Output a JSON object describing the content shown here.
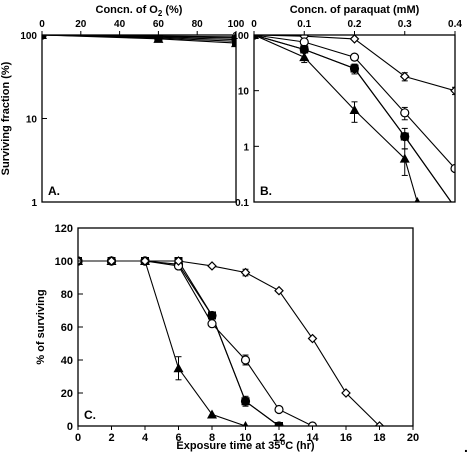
{
  "figure": {
    "trailing_mark": "."
  },
  "chart_data": [
    {
      "panel": "A.",
      "type": "line",
      "xlabel": "Concn. of O",
      "xlabel_sub": "2",
      "xlabel_suffix": " (%)",
      "xlabel_position": "top",
      "ylabel": "Surviving fraction (%)",
      "xlim": [
        0,
        100
      ],
      "ylim": [
        1,
        100
      ],
      "yscale": "log",
      "xticks": [
        0,
        20,
        40,
        60,
        80,
        100
      ],
      "xtick_labels": [
        "0",
        "20",
        "40",
        "60",
        "80",
        "100"
      ],
      "yticks": [
        1,
        10,
        100
      ],
      "ytick_labels": [
        "1",
        "10",
        "100"
      ],
      "grid": false,
      "series": [
        {
          "marker": "diamond-open",
          "x": [
            0,
            60,
            100
          ],
          "y": [
            100,
            97,
            95
          ],
          "err": [
            0,
            0,
            0
          ]
        },
        {
          "marker": "circle-open",
          "x": [
            0,
            60,
            100
          ],
          "y": [
            100,
            96,
            92
          ],
          "err": [
            0,
            0,
            0
          ]
        },
        {
          "marker": "circle-filled",
          "x": [
            0,
            60,
            100
          ],
          "y": [
            100,
            94,
            88
          ],
          "err": [
            0,
            0,
            0
          ]
        },
        {
          "marker": "square-filled",
          "x": [
            0,
            60,
            100
          ],
          "y": [
            100,
            92,
            84
          ],
          "err": [
            0,
            0,
            0
          ]
        },
        {
          "marker": "triangle-filled",
          "x": [
            0,
            60,
            100
          ],
          "y": [
            100,
            90,
            80
          ],
          "err": [
            0,
            0,
            0
          ]
        }
      ]
    },
    {
      "panel": "B.",
      "type": "line",
      "xlabel": "Concn. of paraquat (mM)",
      "xlabel_position": "top",
      "xlim": [
        0,
        0.4
      ],
      "ylim": [
        0.1,
        100
      ],
      "yscale": "log",
      "xticks": [
        0,
        0.1,
        0.2,
        0.3,
        0.4
      ],
      "xtick_labels": [
        "0",
        "0.1",
        "0.2",
        "0.3",
        "0.4"
      ],
      "yticks": [
        0.1,
        1,
        10,
        100
      ],
      "ytick_labels": [
        "0.1",
        "1",
        "10",
        "100"
      ],
      "grid": false,
      "series": [
        {
          "marker": "diamond-open",
          "x": [
            0,
            0.1,
            0.2,
            0.3,
            0.4
          ],
          "y": [
            100,
            95,
            85,
            18,
            10
          ],
          "err": [
            0,
            0,
            0,
            3,
            1.5
          ]
        },
        {
          "marker": "circle-open",
          "x": [
            0,
            0.1,
            0.2,
            0.3,
            0.4
          ],
          "y": [
            100,
            75,
            40,
            4,
            0.4
          ],
          "err": [
            0,
            0,
            5,
            1,
            0
          ]
        },
        {
          "marker": "circle-filled",
          "x": [
            0,
            0.1,
            0.2,
            0.3,
            0.4
          ],
          "y": [
            100,
            55,
            25,
            1.5,
            0.08
          ],
          "err": [
            0,
            5,
            5,
            0.6,
            0
          ]
        },
        {
          "marker": "square-filled",
          "x": [
            0,
            0.1,
            0.2,
            0.3,
            0.4
          ],
          "y": [
            100,
            55,
            25,
            1.5,
            0.08
          ],
          "err": [
            0,
            0,
            0,
            0,
            0
          ]
        },
        {
          "marker": "triangle-filled",
          "x": [
            0,
            0.1,
            0.2,
            0.3,
            0.325
          ],
          "y": [
            100,
            40,
            4.5,
            0.6,
            0.1
          ],
          "err": [
            0,
            8,
            1.8,
            0.3,
            0
          ]
        }
      ]
    },
    {
      "panel": "C.",
      "type": "line",
      "xlabel": "Exposure time at 35",
      "xlabel_sup": "o",
      "xlabel_suffix": "C (hr)",
      "ylabel": "% of surviving",
      "xlim": [
        0,
        20
      ],
      "ylim": [
        0,
        120
      ],
      "xticks": [
        0,
        2,
        4,
        6,
        8,
        10,
        12,
        14,
        16,
        18,
        20
      ],
      "xtick_labels": [
        "0",
        "2",
        "4",
        "6",
        "8",
        "10",
        "12",
        "14",
        "16",
        "18",
        "20"
      ],
      "yticks": [
        0,
        20,
        40,
        60,
        80,
        100,
        120
      ],
      "ytick_labels": [
        "0",
        "20",
        "40",
        "60",
        "80",
        "100",
        "120"
      ],
      "grid": false,
      "series": [
        {
          "marker": "triangle-filled",
          "x": [
            0,
            2,
            4,
            6,
            8,
            10
          ],
          "y": [
            100,
            100,
            100,
            35,
            7,
            0
          ],
          "err": [
            0,
            0,
            0,
            7,
            0,
            0
          ]
        },
        {
          "marker": "square-filled",
          "x": [
            0,
            2,
            4,
            6,
            8,
            10,
            12
          ],
          "y": [
            100,
            100,
            100,
            100,
            67,
            15,
            0
          ],
          "err": [
            0,
            0,
            0,
            0,
            0,
            3,
            0
          ]
        },
        {
          "marker": "circle-filled",
          "x": [
            0,
            2,
            4,
            6,
            8,
            10,
            12
          ],
          "y": [
            100,
            100,
            100,
            98,
            67,
            15,
            0
          ],
          "err": [
            0,
            0,
            0,
            0,
            0,
            0,
            0
          ]
        },
        {
          "marker": "circle-open",
          "x": [
            0,
            2,
            4,
            6,
            8,
            10,
            12,
            14
          ],
          "y": [
            100,
            100,
            100,
            97,
            62,
            40,
            10,
            0
          ],
          "err": [
            0,
            0,
            0,
            2,
            0,
            3,
            0,
            0
          ]
        },
        {
          "marker": "diamond-open",
          "x": [
            0,
            2,
            4,
            6,
            8,
            10,
            12,
            14,
            16,
            18
          ],
          "y": [
            100,
            100,
            100,
            100,
            97,
            93,
            82,
            53,
            20,
            0
          ],
          "err": [
            0,
            0,
            0,
            0,
            0,
            2,
            0,
            0,
            0,
            0
          ]
        }
      ]
    }
  ]
}
